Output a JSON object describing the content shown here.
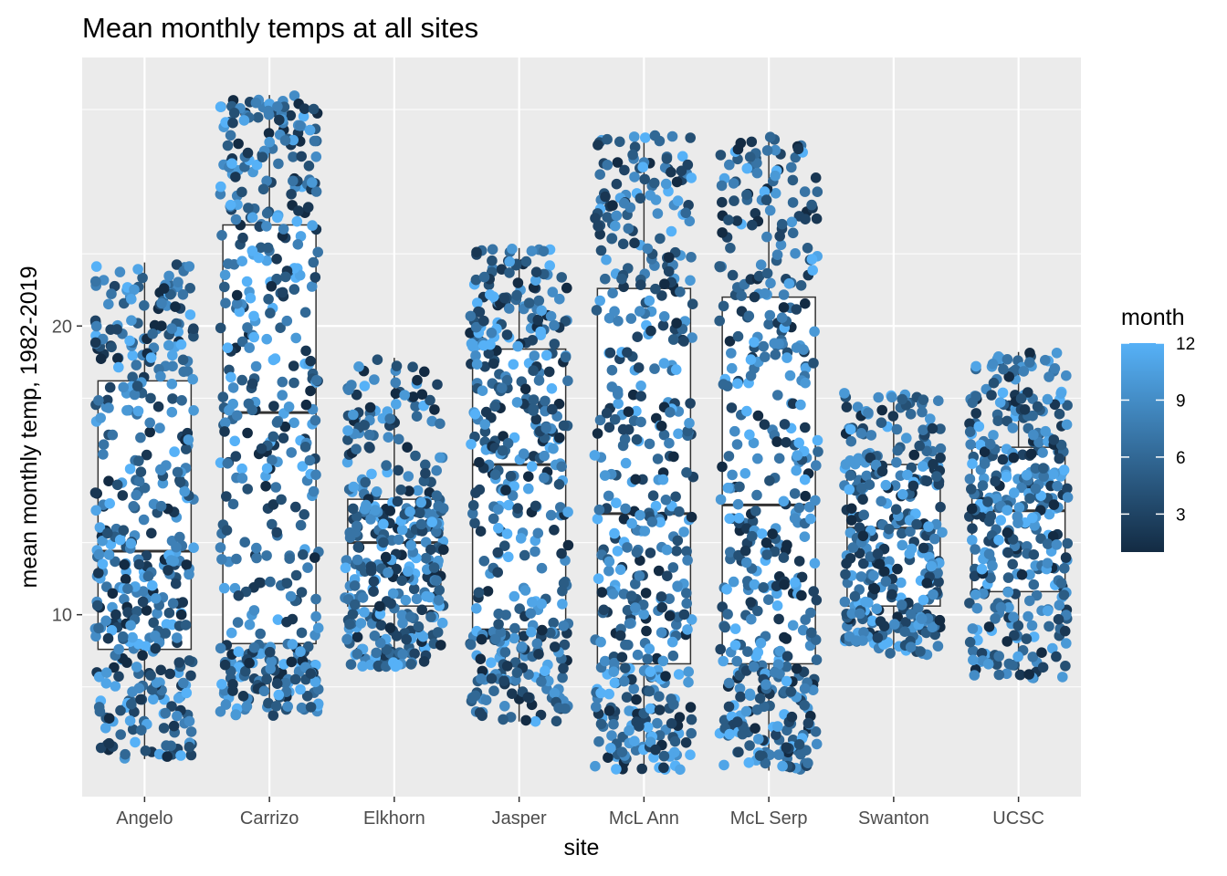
{
  "chart_data": {
    "type": "scatter",
    "subtype": "boxplot-with-jittered-points",
    "title": "Mean monthly temps at all sites",
    "xlabel": "site",
    "ylabel": "mean monthly temp, 1982-2019",
    "categories": [
      "Angelo",
      "Carrizo",
      "Elkhorn",
      "Jasper",
      "McL Ann",
      "McL Serp",
      "Swanton",
      "UCSC"
    ],
    "ylim": [
      3.7,
      29.3
    ],
    "y_ticks": [
      10,
      20
    ],
    "y_tick_labels": [
      "10",
      "20"
    ],
    "grid": true,
    "legend": {
      "title": "month",
      "position": "right",
      "type": "colorbar",
      "range": [
        1,
        12
      ],
      "ticks": [
        3,
        6,
        9,
        12
      ],
      "tick_labels": [
        "3",
        "6",
        "9",
        "12"
      ],
      "color_low": "#132B43",
      "color_high": "#56B1F7"
    },
    "boxplots": [
      {
        "site": "Angelo",
        "min": 5.0,
        "q1": 8.8,
        "median": 12.2,
        "q3": 18.1,
        "max": 22.2,
        "points": 420
      },
      {
        "site": "Carrizo",
        "min": 6.5,
        "q1": 9.0,
        "median": 17.0,
        "q3": 23.5,
        "max": 28.0,
        "points": 460
      },
      {
        "site": "Elkhorn",
        "min": 8.2,
        "q1": 10.3,
        "median": 12.5,
        "q3": 14.0,
        "max": 18.9,
        "points": 360
      },
      {
        "site": "Jasper",
        "min": 6.3,
        "q1": 9.5,
        "median": 15.2,
        "q3": 19.2,
        "max": 22.7,
        "points": 420
      },
      {
        "site": "McL Ann",
        "min": 4.6,
        "q1": 8.3,
        "median": 13.5,
        "q3": 21.3,
        "max": 26.6,
        "points": 460
      },
      {
        "site": "McL Serp",
        "min": 4.6,
        "q1": 8.3,
        "median": 13.8,
        "q3": 21.0,
        "max": 26.6,
        "points": 460
      },
      {
        "site": "Swanton",
        "min": 8.6,
        "q1": 10.3,
        "median": 13.0,
        "q3": 15.2,
        "max": 17.7,
        "points": 330
      },
      {
        "site": "UCSC",
        "min": 7.8,
        "q1": 10.8,
        "median": 13.6,
        "q3": 15.8,
        "max": 19.1,
        "points": 360
      }
    ]
  }
}
